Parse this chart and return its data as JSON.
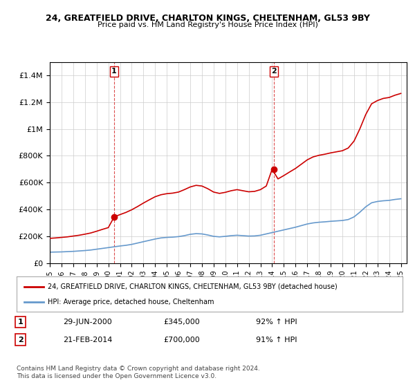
{
  "title": "24, GREATFIELD DRIVE, CHARLTON KINGS, CHELTENHAM, GL53 9BY",
  "subtitle": "Price paid vs. HM Land Registry's House Price Index (HPI)",
  "legend_line1": "24, GREATFIELD DRIVE, CHARLTON KINGS, CHELTENHAM, GL53 9BY (detached house)",
  "legend_line2": "HPI: Average price, detached house, Cheltenham",
  "sale1_label": "1",
  "sale1_date": "29-JUN-2000",
  "sale1_price": "£345,000",
  "sale1_hpi": "92% ↑ HPI",
  "sale1_year": 2000.5,
  "sale1_value": 345000,
  "sale2_label": "2",
  "sale2_date": "21-FEB-2014",
  "sale2_price": "£700,000",
  "sale2_hpi": "91% ↑ HPI",
  "sale2_year": 2014.13,
  "sale2_value": 700000,
  "footer1": "Contains HM Land Registry data © Crown copyright and database right 2024.",
  "footer2": "This data is licensed under the Open Government Licence v3.0.",
  "red_color": "#cc0000",
  "blue_color": "#6699cc",
  "vline_color": "#cc0000",
  "background_color": "#ffffff",
  "ylim_max": 1500000,
  "ylim_min": 0,
  "xlim_min": 1995,
  "xlim_max": 2025.5,
  "hpi_years": [
    1995,
    1995.5,
    1996,
    1996.5,
    1997,
    1997.5,
    1998,
    1998.5,
    1999,
    1999.5,
    2000,
    2000.5,
    2001,
    2001.5,
    2002,
    2002.5,
    2003,
    2003.5,
    2004,
    2004.5,
    2005,
    2005.5,
    2006,
    2006.5,
    2007,
    2007.5,
    2008,
    2008.5,
    2009,
    2009.5,
    2010,
    2010.5,
    2011,
    2011.5,
    2012,
    2012.5,
    2013,
    2013.5,
    2014,
    2014.5,
    2015,
    2015.5,
    2016,
    2016.5,
    2017,
    2017.5,
    2018,
    2018.5,
    2019,
    2019.5,
    2020,
    2020.5,
    2021,
    2021.5,
    2022,
    2022.5,
    2023,
    2023.5,
    2024,
    2024.5,
    2025
  ],
  "hpi_values": [
    82000,
    83000,
    84000,
    86000,
    88000,
    91000,
    94000,
    98000,
    104000,
    110000,
    116000,
    122000,
    128000,
    133000,
    140000,
    150000,
    160000,
    170000,
    180000,
    188000,
    192000,
    194000,
    198000,
    205000,
    215000,
    220000,
    218000,
    210000,
    200000,
    196000,
    200000,
    205000,
    208000,
    205000,
    202000,
    203000,
    208000,
    218000,
    228000,
    238000,
    248000,
    258000,
    268000,
    280000,
    292000,
    300000,
    305000,
    308000,
    312000,
    315000,
    318000,
    325000,
    345000,
    380000,
    420000,
    450000,
    460000,
    465000,
    468000,
    475000,
    480000
  ],
  "red_years": [
    1995,
    1995.5,
    1996,
    1996.5,
    1997,
    1997.5,
    1998,
    1998.5,
    1999,
    1999.5,
    2000,
    2000.5,
    2001,
    2001.5,
    2002,
    2002.5,
    2003,
    2003.5,
    2004,
    2004.5,
    2005,
    2005.5,
    2006,
    2006.5,
    2007,
    2007.5,
    2008,
    2008.5,
    2009,
    2009.5,
    2010,
    2010.5,
    2011,
    2011.5,
    2012,
    2012.5,
    2013,
    2013.5,
    2014,
    2014.5,
    2015,
    2015.5,
    2016,
    2016.5,
    2017,
    2017.5,
    2018,
    2018.5,
    2019,
    2019.5,
    2020,
    2020.5,
    2021,
    2021.5,
    2022,
    2022.5,
    2023,
    2023.5,
    2024,
    2024.5,
    2025
  ],
  "red_values": [
    185000,
    188000,
    192000,
    196000,
    202000,
    208000,
    216000,
    225000,
    238000,
    252000,
    265000,
    345000,
    362000,
    378000,
    398000,
    422000,
    448000,
    472000,
    495000,
    510000,
    518000,
    522000,
    530000,
    548000,
    568000,
    580000,
    575000,
    555000,
    530000,
    520000,
    528000,
    540000,
    548000,
    540000,
    532000,
    535000,
    548000,
    575000,
    700000,
    628000,
    653000,
    680000,
    706000,
    738000,
    770000,
    792000,
    804000,
    812000,
    822000,
    830000,
    838000,
    858000,
    910000,
    1002000,
    1108000,
    1188000,
    1212000,
    1228000,
    1235000,
    1252000,
    1265000
  ],
  "xtick_years": [
    1995,
    1996,
    1997,
    1998,
    1999,
    2000,
    2001,
    2002,
    2003,
    2004,
    2005,
    2006,
    2007,
    2008,
    2009,
    2010,
    2011,
    2012,
    2013,
    2014,
    2015,
    2016,
    2017,
    2018,
    2019,
    2020,
    2021,
    2022,
    2023,
    2024,
    2025
  ]
}
